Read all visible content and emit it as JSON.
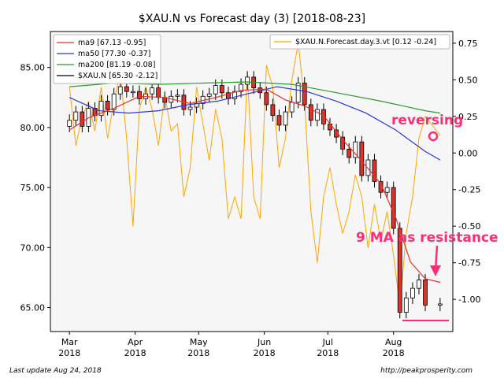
{
  "chart_data": {
    "type": "candlestick",
    "title": "$XAU.N vs Forecast day (3)  [2018-08-23]",
    "xlabel": "",
    "ylabel": "",
    "ylim": [
      63.0,
      88.0
    ],
    "y2lim": [
      -1.22,
      0.83
    ],
    "y_ticks": [
      "65.00",
      "70.00",
      "75.00",
      "80.00",
      "85.00"
    ],
    "y2_ticks": [
      "-1.00",
      "-0.75",
      "-0.50",
      "-0.25",
      "0.00",
      "0.25",
      "0.50",
      "0.75"
    ],
    "x_ticks": [
      {
        "line1": "Mar",
        "line2": "2018",
        "date": "2018-03-01"
      },
      {
        "line1": "Apr",
        "line2": "2018",
        "date": "2018-04-01"
      },
      {
        "line1": "May",
        "line2": "2018",
        "date": "2018-05-01"
      },
      {
        "line1": "Jun",
        "line2": "2018",
        "date": "2018-06-01"
      },
      {
        "line1": "Jul",
        "line2": "2018",
        "date": "2018-07-01"
      },
      {
        "line1": "Aug",
        "line2": "2018",
        "date": "2018-08-01"
      }
    ],
    "legend_left": [
      {
        "label": "ma9 [67.13 -0.95]",
        "color": "#e8322a"
      },
      {
        "label": "ma50 [77.30 -0.37]",
        "color": "#2b35e0"
      },
      {
        "label": "ma200 [81.19 -0.08]",
        "color": "#2c9a2c"
      },
      {
        "label": "$XAU.N [65.30 -2.12]",
        "color": "#000000"
      }
    ],
    "legend_right": [
      {
        "label": "$XAU.N.Forecast.day.3.vt [0.12 -0.24]",
        "color": "#ffa500"
      }
    ],
    "legend_placement": [
      "upper-left",
      "upper-right"
    ],
    "grid": false,
    "price_series": [
      {
        "date": "2018-03-01",
        "close": 80.6
      },
      {
        "date": "2018-03-04",
        "close": 81.3
      },
      {
        "date": "2018-03-07",
        "close": 80.1
      },
      {
        "date": "2018-03-10",
        "close": 81.6
      },
      {
        "date": "2018-03-13",
        "close": 81.0
      },
      {
        "date": "2018-03-16",
        "close": 82.2
      },
      {
        "date": "2018-03-19",
        "close": 81.5
      },
      {
        "date": "2018-03-22",
        "close": 82.8
      },
      {
        "date": "2018-03-25",
        "close": 83.4
      },
      {
        "date": "2018-03-28",
        "close": 83.0
      },
      {
        "date": "2018-03-31",
        "close": 83.0
      },
      {
        "date": "2018-04-03",
        "close": 82.4
      },
      {
        "date": "2018-04-06",
        "close": 82.8
      },
      {
        "date": "2018-04-09",
        "close": 83.3
      },
      {
        "date": "2018-04-12",
        "close": 82.5
      },
      {
        "date": "2018-04-15",
        "close": 82.1
      },
      {
        "date": "2018-04-18",
        "close": 82.6
      },
      {
        "date": "2018-04-21",
        "close": 82.7
      },
      {
        "date": "2018-04-24",
        "close": 81.5
      },
      {
        "date": "2018-04-27",
        "close": 81.7
      },
      {
        "date": "2018-04-30",
        "close": 82.0
      },
      {
        "date": "2018-05-03",
        "close": 82.6
      },
      {
        "date": "2018-05-06",
        "close": 82.8
      },
      {
        "date": "2018-05-09",
        "close": 83.5
      },
      {
        "date": "2018-05-12",
        "close": 82.9
      },
      {
        "date": "2018-05-15",
        "close": 82.4
      },
      {
        "date": "2018-05-18",
        "close": 83.0
      },
      {
        "date": "2018-05-21",
        "close": 83.6
      },
      {
        "date": "2018-05-24",
        "close": 84.2
      },
      {
        "date": "2018-05-27",
        "close": 83.3
      },
      {
        "date": "2018-05-30",
        "close": 82.9
      },
      {
        "date": "2018-06-02",
        "close": 81.9
      },
      {
        "date": "2018-06-05",
        "close": 81.0
      },
      {
        "date": "2018-06-08",
        "close": 80.2
      },
      {
        "date": "2018-06-11",
        "close": 81.3
      },
      {
        "date": "2018-06-14",
        "close": 82.1
      },
      {
        "date": "2018-06-17",
        "close": 83.7
      },
      {
        "date": "2018-06-20",
        "close": 81.9
      },
      {
        "date": "2018-06-23",
        "close": 80.6
      },
      {
        "date": "2018-06-26",
        "close": 81.5
      },
      {
        "date": "2018-06-29",
        "close": 80.3
      },
      {
        "date": "2018-07-02",
        "close": 79.8
      },
      {
        "date": "2018-07-05",
        "close": 79.2
      },
      {
        "date": "2018-07-08",
        "close": 78.2
      },
      {
        "date": "2018-07-11",
        "close": 77.5
      },
      {
        "date": "2018-07-14",
        "close": 78.8
      },
      {
        "date": "2018-07-17",
        "close": 76.0
      },
      {
        "date": "2018-07-20",
        "close": 77.3
      },
      {
        "date": "2018-07-23",
        "close": 75.5
      },
      {
        "date": "2018-07-26",
        "close": 74.6
      },
      {
        "date": "2018-07-29",
        "close": 75.0
      },
      {
        "date": "2018-08-01",
        "close": 71.6
      },
      {
        "date": "2018-08-04",
        "close": 64.6
      },
      {
        "date": "2018-08-07",
        "close": 65.8
      },
      {
        "date": "2018-08-10",
        "close": 66.6
      },
      {
        "date": "2018-08-13",
        "close": 67.3
      },
      {
        "date": "2018-08-16",
        "close": 65.2
      },
      {
        "date": "2018-08-23",
        "close": 65.3
      }
    ],
    "ma9": [
      {
        "date": "2018-03-01",
        "value": 79.8
      },
      {
        "date": "2018-03-10",
        "value": 80.8
      },
      {
        "date": "2018-03-22",
        "value": 81.6
      },
      {
        "date": "2018-04-03",
        "value": 82.6
      },
      {
        "date": "2018-04-15",
        "value": 82.5
      },
      {
        "date": "2018-04-27",
        "value": 82.0
      },
      {
        "date": "2018-05-09",
        "value": 82.5
      },
      {
        "date": "2018-05-21",
        "value": 83.1
      },
      {
        "date": "2018-06-02",
        "value": 83.2
      },
      {
        "date": "2018-06-11",
        "value": 82.3
      },
      {
        "date": "2018-06-20",
        "value": 81.8
      },
      {
        "date": "2018-06-29",
        "value": 81.0
      },
      {
        "date": "2018-07-08",
        "value": 79.0
      },
      {
        "date": "2018-07-17",
        "value": 77.2
      },
      {
        "date": "2018-07-26",
        "value": 75.3
      },
      {
        "date": "2018-08-02",
        "value": 72.5
      },
      {
        "date": "2018-08-09",
        "value": 68.8
      },
      {
        "date": "2018-08-16",
        "value": 67.4
      },
      {
        "date": "2018-08-23",
        "value": 67.1
      }
    ],
    "ma50": [
      {
        "date": "2018-03-01",
        "value": 82.5
      },
      {
        "date": "2018-03-15",
        "value": 81.4
      },
      {
        "date": "2018-03-29",
        "value": 81.2
      },
      {
        "date": "2018-04-12",
        "value": 81.4
      },
      {
        "date": "2018-04-26",
        "value": 81.9
      },
      {
        "date": "2018-05-10",
        "value": 82.2
      },
      {
        "date": "2018-05-24",
        "value": 82.8
      },
      {
        "date": "2018-06-07",
        "value": 83.4
      },
      {
        "date": "2018-06-21",
        "value": 83.0
      },
      {
        "date": "2018-07-05",
        "value": 82.2
      },
      {
        "date": "2018-07-19",
        "value": 81.2
      },
      {
        "date": "2018-08-02",
        "value": 79.8
      },
      {
        "date": "2018-08-16",
        "value": 78.0
      },
      {
        "date": "2018-08-23",
        "value": 77.3
      }
    ],
    "ma200": [
      {
        "date": "2018-03-01",
        "value": 83.4
      },
      {
        "date": "2018-03-22",
        "value": 83.7
      },
      {
        "date": "2018-04-12",
        "value": 83.6
      },
      {
        "date": "2018-05-03",
        "value": 83.7
      },
      {
        "date": "2018-05-24",
        "value": 83.8
      },
      {
        "date": "2018-06-14",
        "value": 83.6
      },
      {
        "date": "2018-07-05",
        "value": 82.9
      },
      {
        "date": "2018-07-26",
        "value": 82.2
      },
      {
        "date": "2018-08-16",
        "value": 81.4
      },
      {
        "date": "2018-08-23",
        "value": 81.2
      }
    ],
    "forecast": [
      {
        "date": "2018-03-01",
        "value": 0.45
      },
      {
        "date": "2018-03-04",
        "value": 0.05
      },
      {
        "date": "2018-03-07",
        "value": 0.25
      },
      {
        "date": "2018-03-10",
        "value": 0.35
      },
      {
        "date": "2018-03-13",
        "value": 0.15
      },
      {
        "date": "2018-03-16",
        "value": 0.45
      },
      {
        "date": "2018-03-19",
        "value": 0.1
      },
      {
        "date": "2018-03-22",
        "value": 0.35
      },
      {
        "date": "2018-03-25",
        "value": 0.55
      },
      {
        "date": "2018-03-28",
        "value": 0.1
      },
      {
        "date": "2018-03-31",
        "value": -0.5
      },
      {
        "date": "2018-04-03",
        "value": 0.3
      },
      {
        "date": "2018-04-06",
        "value": 0.45
      },
      {
        "date": "2018-04-09",
        "value": 0.3
      },
      {
        "date": "2018-04-12",
        "value": 0.05
      },
      {
        "date": "2018-04-15",
        "value": 0.4
      },
      {
        "date": "2018-04-18",
        "value": 0.15
      },
      {
        "date": "2018-04-21",
        "value": 0.2
      },
      {
        "date": "2018-04-24",
        "value": -0.3
      },
      {
        "date": "2018-04-27",
        "value": -0.1
      },
      {
        "date": "2018-04-30",
        "value": 0.45
      },
      {
        "date": "2018-05-03",
        "value": 0.2
      },
      {
        "date": "2018-05-06",
        "value": -0.05
      },
      {
        "date": "2018-05-09",
        "value": 0.3
      },
      {
        "date": "2018-05-12",
        "value": 0.1
      },
      {
        "date": "2018-05-15",
        "value": -0.45
      },
      {
        "date": "2018-05-18",
        "value": -0.3
      },
      {
        "date": "2018-05-21",
        "value": -0.45
      },
      {
        "date": "2018-05-24",
        "value": 0.55
      },
      {
        "date": "2018-05-27",
        "value": -0.3
      },
      {
        "date": "2018-05-30",
        "value": -0.45
      },
      {
        "date": "2018-06-02",
        "value": 0.6
      },
      {
        "date": "2018-06-05",
        "value": 0.45
      },
      {
        "date": "2018-06-08",
        "value": -0.1
      },
      {
        "date": "2018-06-11",
        "value": 0.1
      },
      {
        "date": "2018-06-14",
        "value": 0.5
      },
      {
        "date": "2018-06-17",
        "value": 0.75
      },
      {
        "date": "2018-06-20",
        "value": 0.35
      },
      {
        "date": "2018-06-23",
        "value": -0.4
      },
      {
        "date": "2018-06-26",
        "value": -0.75
      },
      {
        "date": "2018-06-29",
        "value": -0.3
      },
      {
        "date": "2018-07-02",
        "value": -0.1
      },
      {
        "date": "2018-07-05",
        "value": -0.35
      },
      {
        "date": "2018-07-08",
        "value": -0.55
      },
      {
        "date": "2018-07-11",
        "value": -0.4
      },
      {
        "date": "2018-07-14",
        "value": -0.15
      },
      {
        "date": "2018-07-17",
        "value": -0.3
      },
      {
        "date": "2018-07-20",
        "value": -0.65
      },
      {
        "date": "2018-07-23",
        "value": -0.35
      },
      {
        "date": "2018-07-26",
        "value": -0.6
      },
      {
        "date": "2018-07-29",
        "value": -0.4
      },
      {
        "date": "2018-08-01",
        "value": -0.7
      },
      {
        "date": "2018-08-04",
        "value": -1.05
      },
      {
        "date": "2018-08-07",
        "value": -0.55
      },
      {
        "date": "2018-08-10",
        "value": -0.3
      },
      {
        "date": "2018-08-13",
        "value": 0.1
      },
      {
        "date": "2018-08-16",
        "value": 0.25
      },
      {
        "date": "2018-08-23",
        "value": 0.12
      }
    ],
    "annotations": [
      {
        "text": "reversing",
        "color": "#ff2e74"
      },
      {
        "text": "9 MA as resistance",
        "color": "#ff2e74"
      }
    ]
  },
  "footer": {
    "left": "Last update Aug 24, 2018",
    "right": "http://peakprosperity.com"
  },
  "colors": {
    "ma9": "#e8322a",
    "ma50": "#2b35e0",
    "ma200": "#2c9a2c",
    "forecast": "#ffa500",
    "up_candle": "#ffffff",
    "down_candle": "#d9342b",
    "annotation": "#ff2e74",
    "plot_bg": "#f6f6f6"
  }
}
